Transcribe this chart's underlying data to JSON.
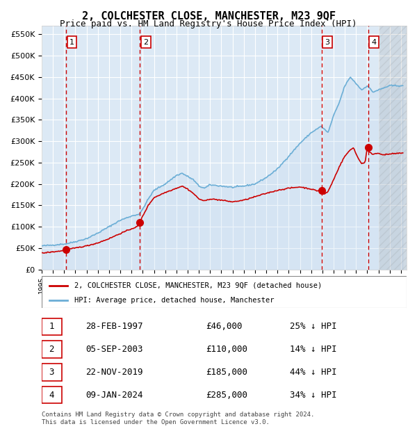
{
  "title": "2, COLCHESTER CLOSE, MANCHESTER, M23 9QF",
  "subtitle": "Price paid vs. HM Land Registry's House Price Index (HPI)",
  "xlabel": "",
  "ylabel": "",
  "ylim": [
    0,
    570000
  ],
  "xlim_start": 1995.0,
  "xlim_end": 2027.5,
  "yticks": [
    0,
    50000,
    100000,
    150000,
    200000,
    250000,
    300000,
    350000,
    400000,
    450000,
    500000,
    550000
  ],
  "ytick_labels": [
    "£0",
    "£50K",
    "£100K",
    "£150K",
    "£200K",
    "£250K",
    "£300K",
    "£350K",
    "£400K",
    "£450K",
    "£500K",
    "£550K"
  ],
  "sale_dates": [
    "1997-02-28",
    "2003-09-05",
    "2019-11-22",
    "2024-01-09"
  ],
  "sale_prices": [
    46000,
    110000,
    185000,
    285000
  ],
  "sale_labels": [
    "1",
    "2",
    "3",
    "4"
  ],
  "hpi_color": "#6baed6",
  "hpi_fill_color": "#c6dbef",
  "price_color": "#cc0000",
  "sale_marker_color": "#cc0000",
  "dashed_line_color": "#cc0000",
  "bg_color": "#dce9f5",
  "plot_bg_color": "#dce9f5",
  "hatch_color": "#aaaaaa",
  "grid_color": "#ffffff",
  "footer_text": "Contains HM Land Registry data © Crown copyright and database right 2024.\nThis data is licensed under the Open Government Licence v3.0.",
  "legend_entries": [
    "2, COLCHESTER CLOSE, MANCHESTER, M23 9QF (detached house)",
    "HPI: Average price, detached house, Manchester"
  ],
  "table_rows": [
    [
      "1",
      "28-FEB-1997",
      "£46,000",
      "25% ↓ HPI"
    ],
    [
      "2",
      "05-SEP-2003",
      "£110,000",
      "14% ↓ HPI"
    ],
    [
      "3",
      "22-NOV-2019",
      "£185,000",
      "44% ↓ HPI"
    ],
    [
      "4",
      "09-JAN-2024",
      "£285,000",
      "34% ↓ HPI"
    ]
  ]
}
